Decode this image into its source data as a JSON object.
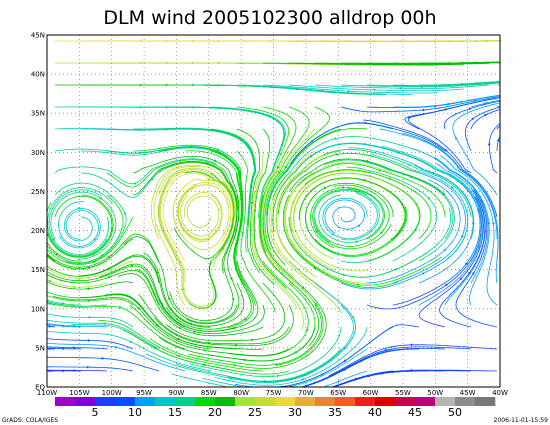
{
  "title": "DLM wind 2005102300 alldrop 00h",
  "lat_labels": [
    "45N",
    "40N",
    "35N",
    "30N",
    "25N",
    "20N",
    "15N",
    "10N",
    "5N",
    "EQ"
  ],
  "lon_labels": [
    "110W",
    "105W",
    "100W",
    "95W",
    "90W",
    "85W",
    "80W",
    "75W",
    "70W",
    "65W",
    "60W",
    "55W",
    "50W",
    "45W",
    "40W"
  ],
  "colorbar": {
    "labels": [
      5,
      10,
      15,
      20,
      25,
      30,
      35,
      40,
      45,
      50
    ],
    "colors": [
      "#a000c8",
      "#8200dc",
      "#1e3cff",
      "#0050ff",
      "#00a0ff",
      "#00c8c8",
      "#00d28c",
      "#00dc00",
      "#00c000",
      "#a0e632",
      "#c8dc32",
      "#e6dc32",
      "#e6af2d",
      "#f08228",
      "#fa5a1e",
      "#f01e1e",
      "#dc0000",
      "#c80050",
      "#c0007a",
      "#b4b4b4",
      "#8c8c8c",
      "#787878"
    ]
  },
  "footer_left": "GrADS: COLA/IGES",
  "footer_right": "2006-11-01-15:59"
}
